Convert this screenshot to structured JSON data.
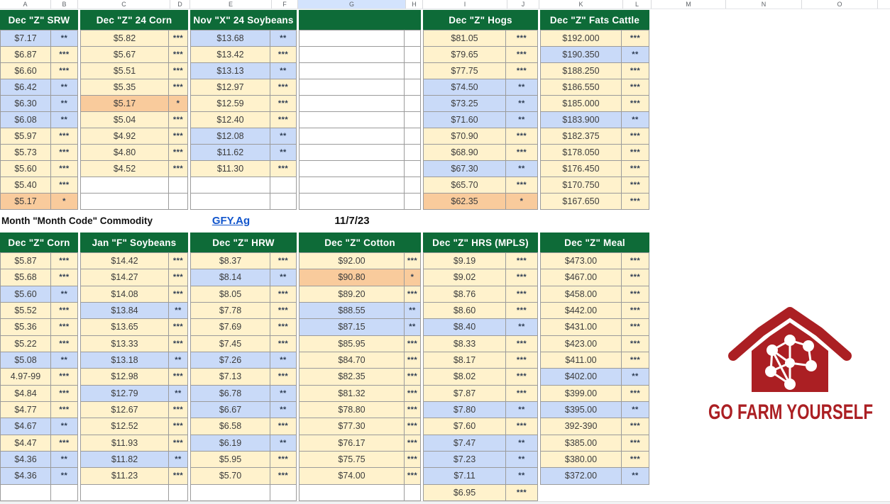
{
  "sheet": {
    "column_letters": [
      "A",
      "B",
      "C",
      "D",
      "E",
      "F",
      "G",
      "H",
      "I",
      "J",
      "K",
      "L",
      "M",
      "N",
      "O"
    ],
    "selected_column": "G"
  },
  "colors": {
    "header_green": "#0e6b38",
    "row_tan": "#fff2cc",
    "row_blue": "#c9daf8",
    "row_orange": "#f9cb9c",
    "link_blue": "#1155cc",
    "logo_red": "#ab1f23"
  },
  "middle_bar": {
    "label": "Month \"Month Code\" Commodity",
    "link": "GFY.Ag",
    "date": "11/7/23"
  },
  "logo": {
    "icon": "barn-network-icon",
    "text": "GO FARM YOURSELF"
  },
  "top_table": {
    "sections": [
      {
        "header": "Dec \"Z\" SRW",
        "rows": [
          {
            "v": "$7.17",
            "s": "**",
            "bg": "blue"
          },
          {
            "v": "$6.87",
            "s": "***",
            "bg": "tan"
          },
          {
            "v": "$6.60",
            "s": "***",
            "bg": "tan"
          },
          {
            "v": "$6.42",
            "s": "**",
            "bg": "blue"
          },
          {
            "v": "$6.30",
            "s": "**",
            "bg": "blue"
          },
          {
            "v": "$6.08",
            "s": "**",
            "bg": "blue"
          },
          {
            "v": "$5.97",
            "s": "***",
            "bg": "tan"
          },
          {
            "v": "$5.73",
            "s": "***",
            "bg": "tan"
          },
          {
            "v": "$5.60",
            "s": "***",
            "bg": "tan"
          },
          {
            "v": "$5.40",
            "s": "***",
            "bg": "tan"
          },
          {
            "v": "$5.17",
            "s": "*",
            "bg": "orange"
          }
        ]
      },
      {
        "header": "Dec \"Z\" 24 Corn",
        "rows": [
          {
            "v": "$5.82",
            "s": "***",
            "bg": "tan"
          },
          {
            "v": "$5.67",
            "s": "***",
            "bg": "tan"
          },
          {
            "v": "$5.51",
            "s": "***",
            "bg": "tan"
          },
          {
            "v": "$5.35",
            "s": "***",
            "bg": "tan"
          },
          {
            "v": "$5.17",
            "s": "*",
            "bg": "orange"
          },
          {
            "v": "$5.04",
            "s": "***",
            "bg": "tan"
          },
          {
            "v": "$4.92",
            "s": "***",
            "bg": "tan"
          },
          {
            "v": "$4.80",
            "s": "***",
            "bg": "tan"
          },
          {
            "v": "$4.52",
            "s": "***",
            "bg": "tan"
          },
          {
            "v": "",
            "s": "",
            "bg": "white"
          },
          {
            "v": "",
            "s": "",
            "bg": "white"
          }
        ]
      },
      {
        "header": "Nov \"X\" 24 Soybeans",
        "rows": [
          {
            "v": "$13.68",
            "s": "**",
            "bg": "blue"
          },
          {
            "v": "$13.42",
            "s": "***",
            "bg": "tan"
          },
          {
            "v": "$13.13",
            "s": "**",
            "bg": "blue"
          },
          {
            "v": "$12.97",
            "s": "***",
            "bg": "tan"
          },
          {
            "v": "$12.59",
            "s": "***",
            "bg": "tan"
          },
          {
            "v": "$12.40",
            "s": "***",
            "bg": "tan"
          },
          {
            "v": "$12.08",
            "s": "**",
            "bg": "blue"
          },
          {
            "v": "$11.62",
            "s": "**",
            "bg": "blue"
          },
          {
            "v": "$11.30",
            "s": "***",
            "bg": "tan"
          },
          {
            "v": "",
            "s": "",
            "bg": "white"
          },
          {
            "v": "",
            "s": "",
            "bg": "white"
          }
        ]
      },
      {
        "header": "",
        "rows": [
          {
            "v": "",
            "s": "",
            "bg": "white"
          },
          {
            "v": "",
            "s": "",
            "bg": "white"
          },
          {
            "v": "",
            "s": "",
            "bg": "white"
          },
          {
            "v": "",
            "s": "",
            "bg": "white"
          },
          {
            "v": "",
            "s": "",
            "bg": "white"
          },
          {
            "v": "",
            "s": "",
            "bg": "white"
          },
          {
            "v": "",
            "s": "",
            "bg": "white"
          },
          {
            "v": "",
            "s": "",
            "bg": "white"
          },
          {
            "v": "",
            "s": "",
            "bg": "white"
          },
          {
            "v": "",
            "s": "",
            "bg": "white"
          },
          {
            "v": "",
            "s": "",
            "bg": "white"
          }
        ]
      },
      {
        "header": "Dec \"Z\" Hogs",
        "rows": [
          {
            "v": "$81.05",
            "s": "***",
            "bg": "tan"
          },
          {
            "v": "$79.65",
            "s": "***",
            "bg": "tan"
          },
          {
            "v": "$77.75",
            "s": "***",
            "bg": "tan"
          },
          {
            "v": "$74.50",
            "s": "**",
            "bg": "blue"
          },
          {
            "v": "$73.25",
            "s": "**",
            "bg": "blue"
          },
          {
            "v": "$71.60",
            "s": "**",
            "bg": "blue"
          },
          {
            "v": "$70.90",
            "s": "***",
            "bg": "tan"
          },
          {
            "v": "$68.90",
            "s": "***",
            "bg": "tan"
          },
          {
            "v": "$67.30",
            "s": "**",
            "bg": "blue"
          },
          {
            "v": "$65.70",
            "s": "***",
            "bg": "tan"
          },
          {
            "v": "$62.35",
            "s": "*",
            "bg": "orange"
          }
        ]
      },
      {
        "header": "Dec \"Z\" Fats Cattle",
        "rows": [
          {
            "v": "$192.000",
            "s": "***",
            "bg": "tan"
          },
          {
            "v": "$190.350",
            "s": "**",
            "bg": "blue"
          },
          {
            "v": "$188.250",
            "s": "***",
            "bg": "tan"
          },
          {
            "v": "$186.550",
            "s": "***",
            "bg": "tan"
          },
          {
            "v": "$185.000",
            "s": "***",
            "bg": "tan"
          },
          {
            "v": "$183.900",
            "s": "**",
            "bg": "blue"
          },
          {
            "v": "$182.375",
            "s": "***",
            "bg": "tan"
          },
          {
            "v": "$178.050",
            "s": "***",
            "bg": "tan"
          },
          {
            "v": "$176.450",
            "s": "***",
            "bg": "tan"
          },
          {
            "v": "$170.750",
            "s": "***",
            "bg": "tan"
          },
          {
            "v": "$167.650",
            "s": "***",
            "bg": "tan"
          }
        ]
      }
    ]
  },
  "bottom_table": {
    "sections": [
      {
        "header": "Dec \"Z\" Corn",
        "rows": [
          {
            "v": "$5.87",
            "s": "***",
            "bg": "tan"
          },
          {
            "v": "$5.68",
            "s": "***",
            "bg": "tan"
          },
          {
            "v": "$5.60",
            "s": "**",
            "bg": "blue"
          },
          {
            "v": "$5.52",
            "s": "***",
            "bg": "tan"
          },
          {
            "v": "$5.36",
            "s": "***",
            "bg": "tan"
          },
          {
            "v": "$5.22",
            "s": "***",
            "bg": "tan"
          },
          {
            "v": "$5.08",
            "s": "**",
            "bg": "blue"
          },
          {
            "v": "4.97-99",
            "s": "***",
            "bg": "tan"
          },
          {
            "v": "$4.84",
            "s": "***",
            "bg": "tan"
          },
          {
            "v": "$4.77",
            "s": "***",
            "bg": "tan"
          },
          {
            "v": "$4.67",
            "s": "**",
            "bg": "blue"
          },
          {
            "v": "$4.47",
            "s": "***",
            "bg": "tan"
          },
          {
            "v": "$4.36",
            "s": "**",
            "bg": "blue"
          },
          {
            "v": "$4.36",
            "s": "**",
            "bg": "blue"
          },
          {
            "v": "",
            "s": "",
            "bg": "white"
          }
        ]
      },
      {
        "header": "Jan \"F\" Soybeans",
        "rows": [
          {
            "v": "$14.42",
            "s": "***",
            "bg": "tan"
          },
          {
            "v": "$14.27",
            "s": "***",
            "bg": "tan"
          },
          {
            "v": "$14.08",
            "s": "***",
            "bg": "tan"
          },
          {
            "v": "$13.84",
            "s": "**",
            "bg": "blue"
          },
          {
            "v": "$13.65",
            "s": "***",
            "bg": "tan"
          },
          {
            "v": "$13.33",
            "s": "***",
            "bg": "tan"
          },
          {
            "v": "$13.18",
            "s": "**",
            "bg": "blue"
          },
          {
            "v": "$12.98",
            "s": "***",
            "bg": "tan"
          },
          {
            "v": "$12.79",
            "s": "**",
            "bg": "blue"
          },
          {
            "v": "$12.67",
            "s": "***",
            "bg": "tan"
          },
          {
            "v": "$12.52",
            "s": "***",
            "bg": "tan"
          },
          {
            "v": "$11.93",
            "s": "***",
            "bg": "tan"
          },
          {
            "v": "$11.82",
            "s": "**",
            "bg": "blue"
          },
          {
            "v": "$11.23",
            "s": "***",
            "bg": "tan"
          },
          {
            "v": "",
            "s": "",
            "bg": "white"
          }
        ]
      },
      {
        "header": "Dec \"Z\" HRW",
        "rows": [
          {
            "v": "$8.37",
            "s": "***",
            "bg": "tan"
          },
          {
            "v": "$8.14",
            "s": "**",
            "bg": "blue"
          },
          {
            "v": "$8.05",
            "s": "***",
            "bg": "tan"
          },
          {
            "v": "$7.78",
            "s": "***",
            "bg": "tan"
          },
          {
            "v": "$7.69",
            "s": "***",
            "bg": "tan"
          },
          {
            "v": "$7.45",
            "s": "***",
            "bg": "tan"
          },
          {
            "v": "$7.26",
            "s": "**",
            "bg": "blue"
          },
          {
            "v": "$7.13",
            "s": "***",
            "bg": "tan"
          },
          {
            "v": "$6.78",
            "s": "**",
            "bg": "blue"
          },
          {
            "v": "$6.67",
            "s": "**",
            "bg": "blue"
          },
          {
            "v": "$6.58",
            "s": "***",
            "bg": "tan"
          },
          {
            "v": "$6.19",
            "s": "**",
            "bg": "blue"
          },
          {
            "v": "$5.95",
            "s": "***",
            "bg": "tan"
          },
          {
            "v": "$5.70",
            "s": "***",
            "bg": "tan"
          },
          {
            "v": "",
            "s": "",
            "bg": "white"
          }
        ]
      },
      {
        "header": "Dec \"Z\" Cotton",
        "rows": [
          {
            "v": "$92.00",
            "s": "***",
            "bg": "tan"
          },
          {
            "v": "$90.80",
            "s": "*",
            "bg": "orange"
          },
          {
            "v": "$89.20",
            "s": "***",
            "bg": "tan"
          },
          {
            "v": "$88.55",
            "s": "**",
            "bg": "blue"
          },
          {
            "v": "$87.15",
            "s": "**",
            "bg": "blue"
          },
          {
            "v": "$85.95",
            "s": "***",
            "bg": "tan"
          },
          {
            "v": "$84.70",
            "s": "***",
            "bg": "tan"
          },
          {
            "v": "$82.35",
            "s": "***",
            "bg": "tan"
          },
          {
            "v": "$81.32",
            "s": "***",
            "bg": "tan"
          },
          {
            "v": "$78.80",
            "s": "***",
            "bg": "tan"
          },
          {
            "v": "$77.30",
            "s": "***",
            "bg": "tan"
          },
          {
            "v": "$76.17",
            "s": "***",
            "bg": "tan"
          },
          {
            "v": "$75.75",
            "s": "***",
            "bg": "tan"
          },
          {
            "v": "$74.00",
            "s": "***",
            "bg": "tan"
          },
          {
            "v": "",
            "s": "",
            "bg": "white"
          }
        ]
      },
      {
        "header": "Dec \"Z\" HRS (MPLS)",
        "rows": [
          {
            "v": "$9.19",
            "s": "***",
            "bg": "tan"
          },
          {
            "v": "$9.02",
            "s": "***",
            "bg": "tan"
          },
          {
            "v": "$8.76",
            "s": "***",
            "bg": "tan"
          },
          {
            "v": "$8.60",
            "s": "***",
            "bg": "tan"
          },
          {
            "v": "$8.40",
            "s": "**",
            "bg": "blue"
          },
          {
            "v": "$8.33",
            "s": "***",
            "bg": "tan"
          },
          {
            "v": "$8.17",
            "s": "***",
            "bg": "tan"
          },
          {
            "v": "$8.02",
            "s": "***",
            "bg": "tan"
          },
          {
            "v": "$7.87",
            "s": "***",
            "bg": "tan"
          },
          {
            "v": "$7.80",
            "s": "**",
            "bg": "blue"
          },
          {
            "v": "$7.60",
            "s": "***",
            "bg": "tan"
          },
          {
            "v": "$7.47",
            "s": "**",
            "bg": "blue"
          },
          {
            "v": "$7.23",
            "s": "**",
            "bg": "blue"
          },
          {
            "v": "$7.11",
            "s": "**",
            "bg": "blue"
          },
          {
            "v": "$6.95",
            "s": "***",
            "bg": "tan"
          }
        ]
      },
      {
        "header": "Dec \"Z\" Meal",
        "rows": [
          {
            "v": "$473.00",
            "s": "***",
            "bg": "tan"
          },
          {
            "v": "$467.00",
            "s": "***",
            "bg": "tan"
          },
          {
            "v": "$458.00",
            "s": "***",
            "bg": "tan"
          },
          {
            "v": "$442.00",
            "s": "***",
            "bg": "tan"
          },
          {
            "v": "$431.00",
            "s": "***",
            "bg": "tan"
          },
          {
            "v": "$423.00",
            "s": "***",
            "bg": "tan"
          },
          {
            "v": "$411.00",
            "s": "***",
            "bg": "tan"
          },
          {
            "v": "$402.00",
            "s": "**",
            "bg": "blue"
          },
          {
            "v": "$399.00",
            "s": "***",
            "bg": "tan"
          },
          {
            "v": "$395.00",
            "s": "**",
            "bg": "blue"
          },
          {
            "v": "392-390",
            "s": "***",
            "bg": "tan"
          },
          {
            "v": "$385.00",
            "s": "***",
            "bg": "tan"
          },
          {
            "v": "$380.00",
            "s": "***",
            "bg": "tan"
          },
          {
            "v": "$372.00",
            "s": "**",
            "bg": "blue"
          },
          {
            "v": "",
            "s": "",
            "bg": "none"
          }
        ]
      }
    ]
  }
}
